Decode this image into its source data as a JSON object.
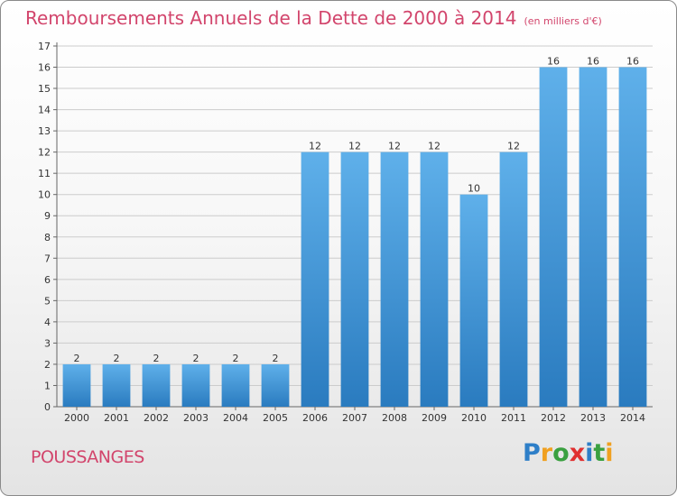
{
  "title": "Remboursements Annuels de la Dette de 2000 à 2014",
  "subtitle": "(en milliers d'€)",
  "commune": "POUSSANGES",
  "logo": {
    "letters": [
      "P",
      "r",
      "o",
      "x",
      "i",
      "t",
      "i"
    ],
    "colors": [
      "#2e7fc8",
      "#f0a020",
      "#3aa040",
      "#e03030",
      "#2e7fc8",
      "#3aa040",
      "#f0a020"
    ]
  },
  "colors": {
    "title": "#d2456c",
    "bar_light": "#5fb0ea",
    "bar_dark": "#2a7bbf",
    "grid": "#cccccc"
  },
  "chart_data": {
    "type": "bar",
    "categories": [
      "2000",
      "2001",
      "2002",
      "2003",
      "2004",
      "2005",
      "2006",
      "2007",
      "2008",
      "2009",
      "2010",
      "2011",
      "2012",
      "2013",
      "2014"
    ],
    "values": [
      2,
      2,
      2,
      2,
      2,
      2,
      12,
      12,
      12,
      12,
      10,
      12,
      16,
      16,
      16
    ],
    "ylim": [
      0,
      17
    ],
    "yticks": [
      0,
      1,
      2,
      3,
      4,
      5,
      6,
      7,
      8,
      9,
      10,
      11,
      12,
      13,
      14,
      15,
      16,
      17
    ],
    "grid": true,
    "xlabel": "",
    "ylabel": ""
  }
}
